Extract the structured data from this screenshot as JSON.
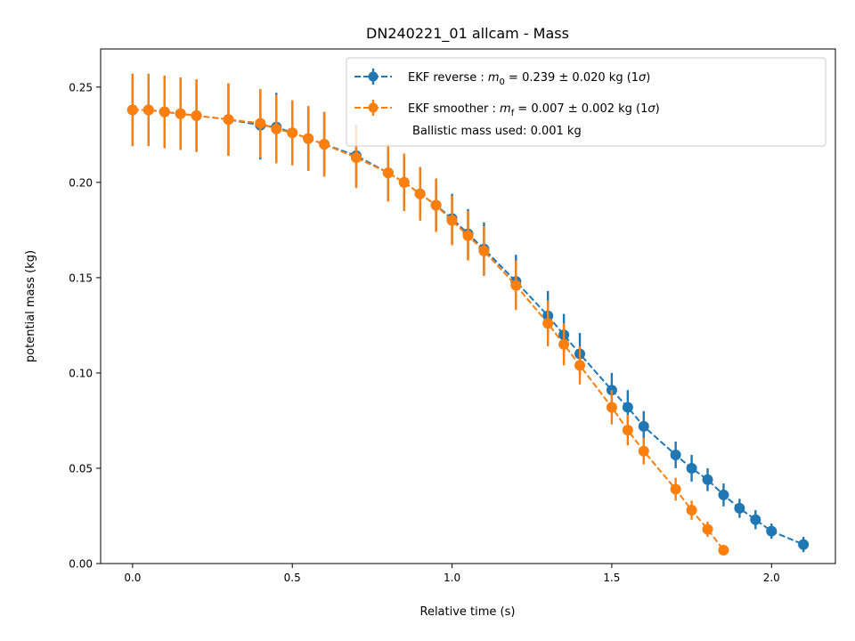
{
  "chart_data": {
    "type": "line",
    "title": "DN240221_01 allcam - Mass",
    "xlabel": "Relative time (s)",
    "ylabel": "potential mass (kg)",
    "xlim": [
      -0.1,
      2.2
    ],
    "ylim": [
      0,
      0.27
    ],
    "xticks": [
      0.0,
      0.5,
      1.0,
      1.5,
      2.0
    ],
    "xtick_labels": [
      "0.0",
      "0.5",
      "1.0",
      "1.5",
      "2.0"
    ],
    "yticks": [
      0.0,
      0.05,
      0.1,
      0.15,
      0.2,
      0.25
    ],
    "ytick_labels": [
      "0.00",
      "0.05",
      "0.10",
      "0.15",
      "0.20",
      "0.25"
    ],
    "grid": false,
    "legend_position": "top-right",
    "legend_extra_text": "Ballistic mass used: 0.001 kg",
    "series": [
      {
        "name": "EKF reverse : m0 =  0.239 ± 0.020 kg (1σ)",
        "legend_prefix": "EKF reverse : ",
        "legend_symbol": "m",
        "legend_subscript": "0",
        "legend_value": " =  0.239 ± 0.020 kg (1",
        "legend_sigma": "σ",
        "legend_suffix": ")",
        "color": "#1f77b4",
        "x": [
          0.0,
          0.05,
          0.1,
          0.15,
          0.2,
          0.3,
          0.4,
          0.45,
          0.5,
          0.55,
          0.6,
          0.7,
          0.8,
          0.85,
          0.9,
          0.95,
          1.0,
          1.05,
          1.1,
          1.2,
          1.3,
          1.35,
          1.4,
          1.5,
          1.55,
          1.6,
          1.7,
          1.75,
          1.8,
          1.85,
          1.9,
          1.95,
          2.0,
          2.1
        ],
        "y": [
          0.238,
          0.238,
          0.237,
          0.236,
          0.235,
          0.233,
          0.23,
          0.229,
          0.226,
          0.223,
          0.22,
          0.214,
          0.205,
          0.2,
          0.194,
          0.188,
          0.181,
          0.173,
          0.165,
          0.148,
          0.13,
          0.12,
          0.11,
          0.091,
          0.082,
          0.072,
          0.057,
          0.05,
          0.044,
          0.036,
          0.029,
          0.023,
          0.017,
          0.01
        ],
        "yerr": [
          0.019,
          0.019,
          0.019,
          0.019,
          0.019,
          0.019,
          0.018,
          0.018,
          0.017,
          0.017,
          0.017,
          0.016,
          0.015,
          0.015,
          0.014,
          0.014,
          0.013,
          0.013,
          0.014,
          0.014,
          0.013,
          0.011,
          0.011,
          0.009,
          0.009,
          0.008,
          0.007,
          0.007,
          0.006,
          0.006,
          0.005,
          0.005,
          0.004,
          0.004
        ]
      },
      {
        "name": "EKF smoother : mf =  0.007 ± 0.002 kg (1σ)",
        "legend_prefix": "EKF smoother : ",
        "legend_symbol": "m",
        "legend_subscript": "f",
        "legend_value": " =  0.007 ± 0.002 kg (1",
        "legend_sigma": "σ",
        "legend_suffix": ")",
        "color": "#ff7f0e",
        "x": [
          0.0,
          0.05,
          0.1,
          0.15,
          0.2,
          0.3,
          0.4,
          0.45,
          0.5,
          0.55,
          0.6,
          0.7,
          0.8,
          0.85,
          0.9,
          0.95,
          1.0,
          1.05,
          1.1,
          1.2,
          1.3,
          1.35,
          1.4,
          1.5,
          1.55,
          1.6,
          1.7,
          1.75,
          1.8,
          1.85
        ],
        "y": [
          0.238,
          0.238,
          0.237,
          0.236,
          0.235,
          0.233,
          0.231,
          0.228,
          0.226,
          0.223,
          0.22,
          0.213,
          0.205,
          0.2,
          0.194,
          0.188,
          0.18,
          0.172,
          0.164,
          0.146,
          0.126,
          0.115,
          0.104,
          0.082,
          0.07,
          0.059,
          0.039,
          0.028,
          0.018,
          0.007
        ],
        "yerr": [
          0.019,
          0.019,
          0.019,
          0.019,
          0.019,
          0.019,
          0.018,
          0.018,
          0.017,
          0.017,
          0.017,
          0.016,
          0.015,
          0.015,
          0.014,
          0.014,
          0.013,
          0.013,
          0.013,
          0.013,
          0.012,
          0.011,
          0.01,
          0.009,
          0.008,
          0.007,
          0.006,
          0.005,
          0.004,
          0.001
        ]
      }
    ]
  }
}
